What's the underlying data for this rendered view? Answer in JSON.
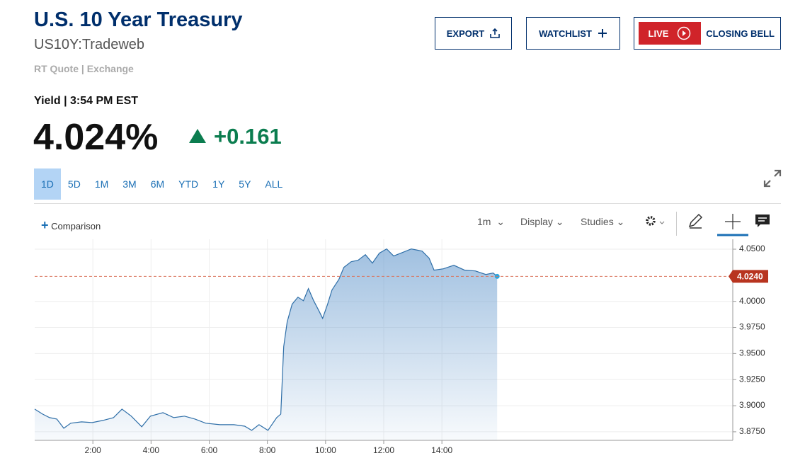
{
  "header": {
    "title": "U.S. 10 Year Treasury",
    "symbol": "US10Y:Tradeweb",
    "quote_source": "RT Quote | Exchange"
  },
  "buttons": {
    "export": "EXPORT",
    "watchlist": "WATCHLIST",
    "live": "LIVE",
    "closing_bell": "CLOSING BELL"
  },
  "quote": {
    "label": "Yield | 3:54 PM EST",
    "price": "4.024%",
    "change": "+0.161"
  },
  "time_ranges": [
    "1D",
    "5D",
    "1M",
    "3M",
    "6M",
    "YTD",
    "1Y",
    "5Y",
    "ALL"
  ],
  "toolbar": {
    "comparison": "Comparison",
    "interval": "1m",
    "display": "Display",
    "studies": "Studies"
  },
  "chart_data": {
    "type": "line",
    "color": "#2f6fa8",
    "grid": true,
    "x": [
      0,
      0.27,
      0.51,
      0.76,
      1.0,
      1.24,
      1.61,
      1.98,
      2.34,
      2.71,
      3.0,
      3.32,
      3.68,
      3.98,
      4.41,
      4.78,
      5.15,
      5.51,
      5.88,
      6.37,
      6.85,
      7.22,
      7.46,
      7.71,
      8.02,
      8.32,
      8.46,
      8.56,
      8.68,
      8.85,
      9.05,
      9.24,
      9.41,
      9.59,
      9.78,
      9.9,
      10.07,
      10.22,
      10.46,
      10.63,
      10.88,
      11.12,
      11.37,
      11.61,
      11.85,
      12.1,
      12.34,
      12.59,
      12.95,
      13.32,
      13.56,
      13.73,
      14.05,
      14.41,
      14.78,
      15.15,
      15.51,
      15.76,
      15.9
    ],
    "values": [
      3.8967,
      3.892,
      3.8886,
      3.8872,
      3.8784,
      3.8832,
      3.8845,
      3.8838,
      3.8859,
      3.8886,
      3.8967,
      3.89,
      3.8798,
      3.89,
      3.8933,
      3.8886,
      3.89,
      3.8872,
      3.8832,
      3.8818,
      3.8818,
      3.8804,
      3.8764,
      3.8818,
      3.8764,
      3.8886,
      3.892,
      3.9565,
      3.9803,
      3.9973,
      4.004,
      4.0007,
      4.0122,
      4.0007,
      3.9905,
      3.9837,
      3.9973,
      4.0109,
      4.0211,
      4.0326,
      4.038,
      4.0394,
      4.0448,
      4.0367,
      4.0462,
      4.0503,
      4.0435,
      4.0462,
      4.0503,
      4.0482,
      4.0414,
      4.0299,
      4.0312,
      4.0346,
      4.0299,
      4.0292,
      4.0258,
      4.0272,
      4.024
    ],
    "xlim": [
      0,
      24
    ],
    "xticks": [
      {
        "value": 2,
        "label": "2:00"
      },
      {
        "value": 4,
        "label": "4:00"
      },
      {
        "value": 6,
        "label": "6:00"
      },
      {
        "value": 8,
        "label": "8:00"
      },
      {
        "value": 10,
        "label": "10:00"
      },
      {
        "value": 12,
        "label": "12:00"
      },
      {
        "value": 14,
        "label": "14:00"
      }
    ],
    "ylim": [
      3.8668,
      4.0595
    ],
    "yticks": [
      {
        "value": 3.875,
        "label": "3.8750"
      },
      {
        "value": 3.9,
        "label": "3.9000"
      },
      {
        "value": 3.925,
        "label": "3.9250"
      },
      {
        "value": 3.95,
        "label": "3.9500"
      },
      {
        "value": 3.975,
        "label": "3.9750"
      },
      {
        "value": 4.0,
        "label": "4.0000"
      },
      {
        "value": 4.05,
        "label": "4.0500"
      }
    ],
    "current_price": {
      "value": 4.024,
      "label": "4.0240"
    }
  }
}
